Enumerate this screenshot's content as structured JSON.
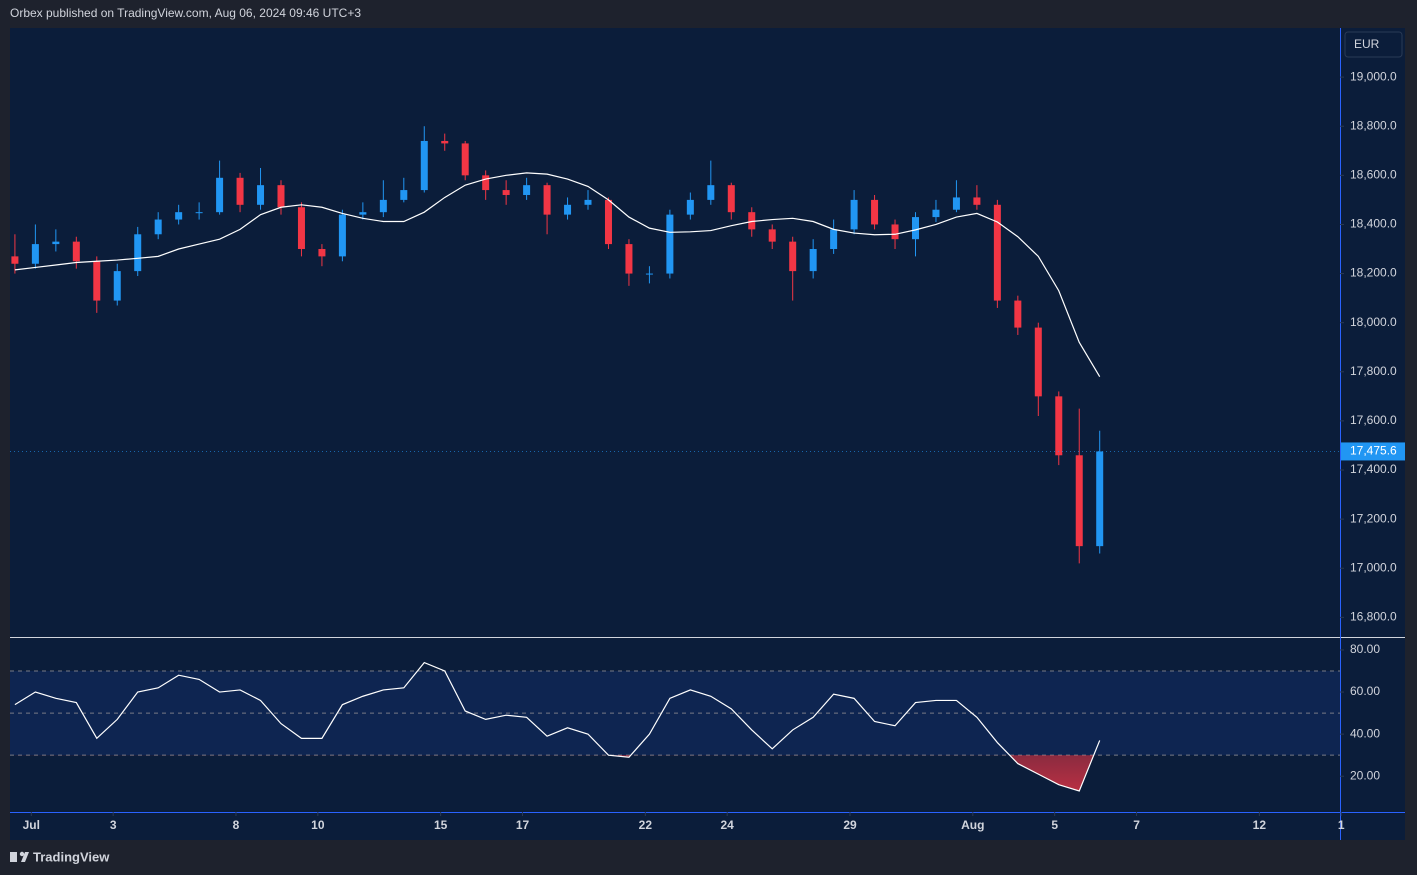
{
  "header": "Orbex published on TradingView.com, Aug 06, 2024 09:46 UTC+3",
  "footer": "TradingView",
  "chart_data": [
    {
      "type": "candlestick",
      "currency": "EUR",
      "x": [
        -0.4,
        0.1,
        0.6,
        1.1,
        1.6,
        2.1,
        2.6,
        3.1,
        3.6,
        4.1,
        4.6,
        5.1,
        5.6,
        6.1,
        6.6,
        7.1,
        7.6,
        8.1,
        8.6,
        9.1,
        9.6,
        10.1,
        10.6,
        11.1,
        11.6,
        12.1,
        12.6,
        13.1,
        13.6,
        14.1,
        14.6,
        15.1,
        15.6,
        16.1,
        16.6,
        17.1,
        17.6,
        18.1,
        18.6,
        19.1,
        19.6,
        20.1,
        20.6,
        21.1,
        21.6,
        22.1,
        22.6,
        23.1,
        23.6,
        24.1,
        24.6,
        25.1,
        25.6,
        26.1
      ],
      "open": [
        18270,
        18240,
        18320,
        18330,
        18250,
        18090,
        18210,
        18360,
        18420,
        18450,
        18450,
        18590,
        18480,
        18560,
        18470,
        18300,
        18270,
        18440,
        18450,
        18500,
        18540,
        18740,
        18730,
        18600,
        18540,
        18520,
        18560,
        18440,
        18480,
        18500,
        18320,
        18200,
        18200,
        18440,
        18500,
        18560,
        18450,
        18380,
        18330,
        18210,
        18300,
        18380,
        18500,
        18400,
        18340,
        18430,
        18460,
        18510,
        18480,
        18090,
        17980,
        17700,
        17460,
        17090
      ],
      "high": [
        18360,
        18400,
        18380,
        18350,
        18270,
        18240,
        18390,
        18450,
        18480,
        18490,
        18660,
        18610,
        18630,
        18580,
        18490,
        18320,
        18460,
        18490,
        18580,
        18590,
        18800,
        18770,
        18740,
        18620,
        18580,
        18590,
        18570,
        18510,
        18540,
        18510,
        18340,
        18230,
        18460,
        18530,
        18660,
        18570,
        18470,
        18400,
        18350,
        18340,
        18420,
        18540,
        18520,
        18420,
        18450,
        18500,
        18580,
        18560,
        18500,
        18110,
        18000,
        17720,
        17650,
        17560
      ],
      "low": [
        18200,
        18220,
        18290,
        18220,
        18040,
        18070,
        18190,
        18340,
        18400,
        18420,
        18440,
        18450,
        18460,
        18440,
        18270,
        18230,
        18250,
        18420,
        18430,
        18490,
        18530,
        18700,
        18580,
        18500,
        18480,
        18500,
        18360,
        18420,
        18460,
        18300,
        18150,
        18160,
        18180,
        18420,
        18480,
        18420,
        18350,
        18300,
        18090,
        18180,
        18280,
        18360,
        18380,
        18300,
        18270,
        18410,
        18450,
        18460,
        18060,
        17950,
        17620,
        17420,
        17020,
        17060
      ],
      "close": [
        18240,
        18320,
        18330,
        18250,
        18090,
        18210,
        18360,
        18420,
        18450,
        18450,
        18590,
        18480,
        18560,
        18470,
        18300,
        18270,
        18440,
        18450,
        18500,
        18540,
        18740,
        18730,
        18600,
        18540,
        18520,
        18560,
        18440,
        18480,
        18500,
        18320,
        18200,
        18200,
        18440,
        18500,
        18560,
        18450,
        18380,
        18330,
        18210,
        18300,
        18380,
        18500,
        18400,
        18340,
        18430,
        18460,
        18510,
        18480,
        18090,
        17980,
        17700,
        17460,
        17090,
        17475.6
      ],
      "up_color": "#2196f3",
      "down_color": "#f23645",
      "moving_average": {
        "color": "#ffffff",
        "values": [
          18215,
          18225,
          18235,
          18245,
          18250,
          18255,
          18262,
          18270,
          18300,
          18320,
          18340,
          18380,
          18440,
          18470,
          18480,
          18470,
          18445,
          18425,
          18412,
          18412,
          18450,
          18510,
          18560,
          18585,
          18600,
          18610,
          18605,
          18585,
          18555,
          18500,
          18430,
          18385,
          18368,
          18370,
          18375,
          18395,
          18412,
          18420,
          18425,
          18412,
          18380,
          18365,
          18358,
          18360,
          18378,
          18400,
          18430,
          18445,
          18410,
          18350,
          18270,
          18130,
          17920,
          17780
        ]
      },
      "last_price": {
        "value": 17475.6,
        "label": "17,475.6"
      },
      "xlim": [
        -0.52,
        31.97
      ],
      "ylim": [
        16720,
        19200
      ],
      "yticks": [
        {
          "value": 16800,
          "label": "16,800.0"
        },
        {
          "value": 17000,
          "label": "17,000.0"
        },
        {
          "value": 17200,
          "label": "17,200.0"
        },
        {
          "value": 17400,
          "label": "17,400.0"
        },
        {
          "value": 17600,
          "label": "17,600.0"
        },
        {
          "value": 17800,
          "label": "17,800.0"
        },
        {
          "value": 18000,
          "label": "18,000.0"
        },
        {
          "value": 18200,
          "label": "18,200.0"
        },
        {
          "value": 18400,
          "label": "18,400.0"
        },
        {
          "value": 18600,
          "label": "18,600.0"
        },
        {
          "value": 18800,
          "label": "18,800.0"
        },
        {
          "value": 19000,
          "label": "19,000.0"
        }
      ]
    },
    {
      "type": "line",
      "color": "#ffffff",
      "x": [
        -0.4,
        0.1,
        0.6,
        1.1,
        1.6,
        2.1,
        2.6,
        3.1,
        3.6,
        4.1,
        4.6,
        5.1,
        5.6,
        6.1,
        6.6,
        7.1,
        7.6,
        8.1,
        8.6,
        9.1,
        9.6,
        10.1,
        10.6,
        11.1,
        11.6,
        12.1,
        12.6,
        13.1,
        13.6,
        14.1,
        14.6,
        15.1,
        15.6,
        16.1,
        16.6,
        17.1,
        17.6,
        18.1,
        18.6,
        19.1,
        19.6,
        20.1,
        20.6,
        21.1,
        21.6,
        22.1,
        22.6,
        23.1,
        23.6,
        24.1,
        24.6,
        25.1,
        25.6,
        26.1
      ],
      "values": [
        54,
        60,
        57,
        55,
        38,
        47,
        60,
        62,
        68,
        66,
        60,
        61,
        56,
        45,
        38,
        38,
        54,
        58,
        61,
        62,
        74,
        70,
        51,
        47,
        49,
        48,
        39,
        43,
        40,
        30,
        29,
        40,
        57,
        61,
        58,
        52,
        42,
        33,
        42,
        48,
        59,
        57,
        46,
        44,
        55,
        56,
        56,
        48,
        36,
        26,
        21,
        16,
        13,
        37
      ],
      "levels": [
        70,
        50,
        30
      ],
      "oversold": 30,
      "oversold_color": "#f23645",
      "xlim": [
        -0.52,
        31.97
      ],
      "ylim": [
        3,
        85.2
      ],
      "yticks": [
        {
          "value": 20,
          "label": "20.00"
        },
        {
          "value": 40,
          "label": "40.00"
        },
        {
          "value": 60,
          "label": "60.00"
        },
        {
          "value": 80,
          "label": "80.00"
        }
      ],
      "xticks": [
        {
          "value": 0,
          "label": "Jul"
        },
        {
          "value": 2,
          "label": "3"
        },
        {
          "value": 5,
          "label": "8"
        },
        {
          "value": 7,
          "label": "10"
        },
        {
          "value": 10,
          "label": "15"
        },
        {
          "value": 12,
          "label": "17"
        },
        {
          "value": 15,
          "label": "22"
        },
        {
          "value": 17,
          "label": "24"
        },
        {
          "value": 20,
          "label": "29"
        },
        {
          "value": 23,
          "label": "Aug"
        },
        {
          "value": 25,
          "label": "5"
        },
        {
          "value": 27,
          "label": "7"
        },
        {
          "value": 30,
          "label": "12"
        },
        {
          "value": 32,
          "label": "1"
        }
      ]
    }
  ]
}
